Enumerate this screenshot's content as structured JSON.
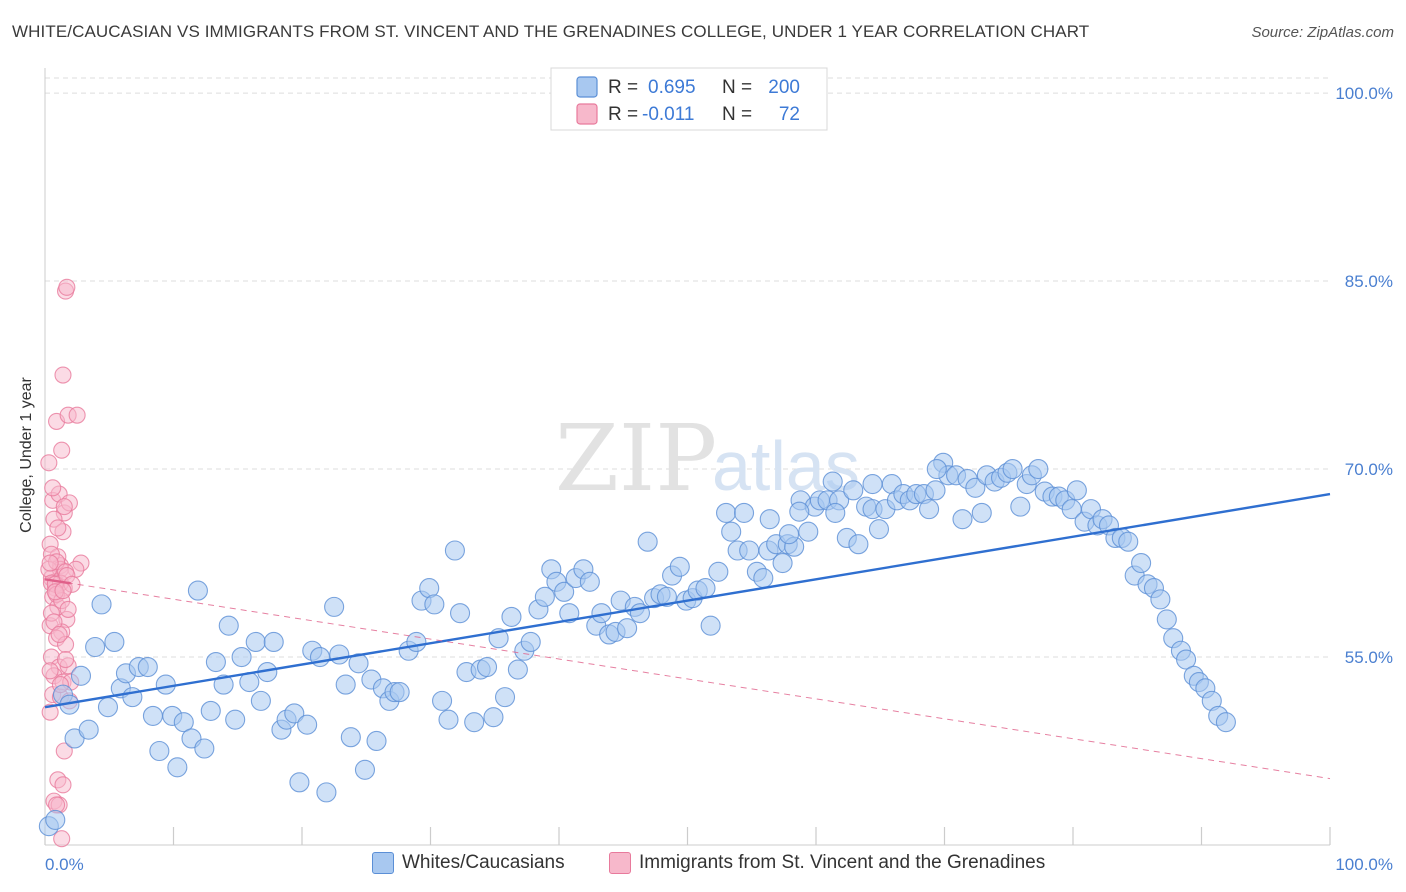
{
  "header": {
    "title": "WHITE/CAUCASIAN VS IMMIGRANTS FROM ST. VINCENT AND THE GRENADINES COLLEGE, UNDER 1 YEAR CORRELATION CHART",
    "source": "Source: ZipAtlas.com"
  },
  "watermark": {
    "zip": "ZIP",
    "atlas": "atlas"
  },
  "colors": {
    "blue_fill": "#a8c8f0",
    "blue_stroke": "#5b8fd6",
    "blue_line": "#2f6fd0",
    "pink_fill": "#f7b8cb",
    "pink_stroke": "#e87a9c",
    "pink_line": "#e0608a",
    "tick_text": "#4a7fd0",
    "grid": "#dddddd"
  },
  "stats_legend": {
    "rows": [
      {
        "r_label": "R = ",
        "r_value": "0.695",
        "n_label": "N = ",
        "n_value": "200"
      },
      {
        "r_label": "R = ",
        "r_value": "-0.011",
        "n_label": "N = ",
        "n_value": "72"
      }
    ]
  },
  "chart_data": {
    "type": "scatter",
    "title": "WHITE/CAUCASIAN VS IMMIGRANTS FROM ST. VINCENT AND THE GRENADINES COLLEGE, UNDER 1 YEAR CORRELATION CHART",
    "xlabel": "",
    "ylabel": "College, Under 1 year",
    "xlim": [
      0,
      100
    ],
    "ylim": [
      40,
      102
    ],
    "x_tick_labels": [
      "0.0%",
      "100.0%"
    ],
    "y_ticks": [
      55,
      70,
      85,
      100
    ],
    "y_tick_labels": [
      "55.0%",
      "70.0%",
      "85.0%",
      "100.0%"
    ],
    "grid": true,
    "legend_position": "bottom",
    "series": [
      {
        "name": "Whites/Caucasians",
        "r": 0.695,
        "n": 200,
        "trend": {
          "x": [
            0,
            100
          ],
          "y": [
            51.0,
            68.0
          ]
        },
        "points": [
          [
            0.3,
            41.5
          ],
          [
            0.8,
            42.0
          ],
          [
            1.4,
            52.0
          ],
          [
            1.9,
            51.2
          ],
          [
            2.3,
            48.5
          ],
          [
            2.8,
            53.5
          ],
          [
            3.4,
            49.2
          ],
          [
            3.9,
            55.8
          ],
          [
            4.4,
            59.2
          ],
          [
            4.9,
            51.0
          ],
          [
            5.4,
            56.2
          ],
          [
            5.9,
            52.5
          ],
          [
            6.3,
            53.7
          ],
          [
            6.8,
            51.8
          ],
          [
            7.3,
            54.2
          ],
          [
            8.0,
            54.2
          ],
          [
            8.4,
            50.3
          ],
          [
            8.9,
            47.5
          ],
          [
            9.4,
            52.8
          ],
          [
            9.9,
            50.3
          ],
          [
            10.3,
            46.2
          ],
          [
            10.8,
            49.8
          ],
          [
            11.4,
            48.5
          ],
          [
            11.9,
            60.3
          ],
          [
            12.4,
            47.7
          ],
          [
            12.9,
            50.7
          ],
          [
            13.3,
            54.6
          ],
          [
            13.9,
            52.8
          ],
          [
            14.3,
            57.5
          ],
          [
            14.8,
            50.0
          ],
          [
            15.3,
            55.0
          ],
          [
            15.9,
            53.0
          ],
          [
            16.4,
            56.2
          ],
          [
            16.8,
            51.5
          ],
          [
            17.3,
            53.8
          ],
          [
            17.8,
            56.2
          ],
          [
            18.4,
            49.2
          ],
          [
            18.8,
            50.0
          ],
          [
            19.4,
            50.5
          ],
          [
            19.8,
            45.0
          ],
          [
            20.4,
            49.6
          ],
          [
            20.8,
            55.5
          ],
          [
            21.4,
            55.0
          ],
          [
            21.9,
            44.2
          ],
          [
            22.5,
            59.0
          ],
          [
            22.9,
            55.2
          ],
          [
            23.4,
            52.8
          ],
          [
            23.8,
            48.6
          ],
          [
            24.4,
            54.5
          ],
          [
            24.9,
            46.0
          ],
          [
            25.4,
            53.2
          ],
          [
            25.8,
            48.3
          ],
          [
            26.3,
            52.5
          ],
          [
            26.8,
            51.5
          ],
          [
            27.2,
            52.2
          ],
          [
            27.6,
            52.2
          ],
          [
            28.3,
            55.5
          ],
          [
            28.9,
            56.2
          ],
          [
            29.3,
            59.5
          ],
          [
            29.9,
            60.5
          ],
          [
            30.3,
            59.2
          ],
          [
            30.9,
            51.5
          ],
          [
            31.4,
            50.0
          ],
          [
            31.9,
            63.5
          ],
          [
            32.3,
            58.5
          ],
          [
            32.8,
            53.8
          ],
          [
            33.4,
            49.8
          ],
          [
            33.9,
            54.0
          ],
          [
            34.4,
            54.2
          ],
          [
            34.9,
            50.2
          ],
          [
            35.3,
            56.5
          ],
          [
            35.8,
            51.8
          ],
          [
            36.3,
            58.2
          ],
          [
            36.8,
            54.0
          ],
          [
            37.3,
            55.5
          ],
          [
            37.8,
            56.2
          ],
          [
            38.4,
            58.8
          ],
          [
            38.9,
            59.8
          ],
          [
            39.4,
            62.0
          ],
          [
            39.8,
            61.0
          ],
          [
            40.4,
            60.2
          ],
          [
            40.8,
            58.5
          ],
          [
            41.3,
            61.3
          ],
          [
            41.9,
            62.0
          ],
          [
            42.4,
            61.0
          ],
          [
            42.9,
            57.5
          ],
          [
            43.3,
            58.5
          ],
          [
            43.9,
            56.8
          ],
          [
            44.4,
            57.0
          ],
          [
            44.8,
            59.5
          ],
          [
            45.3,
            57.3
          ],
          [
            45.9,
            59.0
          ],
          [
            46.3,
            58.5
          ],
          [
            46.9,
            64.2
          ],
          [
            47.4,
            59.7
          ],
          [
            47.9,
            60.0
          ],
          [
            48.4,
            59.8
          ],
          [
            48.8,
            61.5
          ],
          [
            49.4,
            62.2
          ],
          [
            49.9,
            59.5
          ],
          [
            50.4,
            59.7
          ],
          [
            50.8,
            60.3
          ],
          [
            51.4,
            60.5
          ],
          [
            51.8,
            57.5
          ],
          [
            52.4,
            61.8
          ],
          [
            53.0,
            66.5
          ],
          [
            53.4,
            65.0
          ],
          [
            53.9,
            63.5
          ],
          [
            54.4,
            66.5
          ],
          [
            54.8,
            63.5
          ],
          [
            55.4,
            61.8
          ],
          [
            55.9,
            61.3
          ],
          [
            56.3,
            63.5
          ],
          [
            56.9,
            64.0
          ],
          [
            57.4,
            62.5
          ],
          [
            57.8,
            64.0
          ],
          [
            58.3,
            63.8
          ],
          [
            58.8,
            67.5
          ],
          [
            59.4,
            65.0
          ],
          [
            59.9,
            67.0
          ],
          [
            60.3,
            67.5
          ],
          [
            60.9,
            67.5
          ],
          [
            61.3,
            69.0
          ],
          [
            61.8,
            67.5
          ],
          [
            62.4,
            64.5
          ],
          [
            62.9,
            68.3
          ],
          [
            63.3,
            64.0
          ],
          [
            63.9,
            67.0
          ],
          [
            64.4,
            66.8
          ],
          [
            64.9,
            65.2
          ],
          [
            65.4,
            66.8
          ],
          [
            65.9,
            68.8
          ],
          [
            66.3,
            67.5
          ],
          [
            66.8,
            68.0
          ],
          [
            67.3,
            67.5
          ],
          [
            67.8,
            68.0
          ],
          [
            68.4,
            68.0
          ],
          [
            68.8,
            66.8
          ],
          [
            69.3,
            68.3
          ],
          [
            69.9,
            70.5
          ],
          [
            70.3,
            69.5
          ],
          [
            70.9,
            69.5
          ],
          [
            71.4,
            66.0
          ],
          [
            71.8,
            69.2
          ],
          [
            72.4,
            68.5
          ],
          [
            72.9,
            66.5
          ],
          [
            73.3,
            69.5
          ],
          [
            73.9,
            69.0
          ],
          [
            74.4,
            69.3
          ],
          [
            74.9,
            69.7
          ],
          [
            75.3,
            70.0
          ],
          [
            75.9,
            67.0
          ],
          [
            76.4,
            68.8
          ],
          [
            76.8,
            69.5
          ],
          [
            77.3,
            70.0
          ],
          [
            77.8,
            68.2
          ],
          [
            78.4,
            67.8
          ],
          [
            78.9,
            67.8
          ],
          [
            79.4,
            67.5
          ],
          [
            79.9,
            66.8
          ],
          [
            80.3,
            68.3
          ],
          [
            80.9,
            65.8
          ],
          [
            81.4,
            66.8
          ],
          [
            81.9,
            65.5
          ],
          [
            82.3,
            66.0
          ],
          [
            82.8,
            65.5
          ],
          [
            83.3,
            64.5
          ],
          [
            83.8,
            64.5
          ],
          [
            84.3,
            64.2
          ],
          [
            84.8,
            61.5
          ],
          [
            85.3,
            62.5
          ],
          [
            85.8,
            60.8
          ],
          [
            86.3,
            60.5
          ],
          [
            86.8,
            59.6
          ],
          [
            87.3,
            58.0
          ],
          [
            87.8,
            56.5
          ],
          [
            88.4,
            55.5
          ],
          [
            88.8,
            54.8
          ],
          [
            89.4,
            53.5
          ],
          [
            89.8,
            53.0
          ],
          [
            90.3,
            52.5
          ],
          [
            90.8,
            51.5
          ],
          [
            91.3,
            50.3
          ],
          [
            91.9,
            49.8
          ],
          [
            69.4,
            70.0
          ],
          [
            64.4,
            68.8
          ],
          [
            57.9,
            64.8
          ],
          [
            56.4,
            66.0
          ],
          [
            58.7,
            66.6
          ],
          [
            61.5,
            66.5
          ]
        ]
      },
      {
        "name": "Immigrants from St. Vincent and the Grenadines",
        "r": -0.011,
        "n": 72,
        "trend": {
          "x": [
            0,
            100
          ],
          "y": [
            61.2,
            45.3
          ]
        },
        "points": [
          [
            0.5,
            61.3
          ],
          [
            0.8,
            60.5
          ],
          [
            1.2,
            62.3
          ],
          [
            0.4,
            64.0
          ],
          [
            1.0,
            63.0
          ],
          [
            1.5,
            66.5
          ],
          [
            0.6,
            67.5
          ],
          [
            1.3,
            71.5
          ],
          [
            0.9,
            73.8
          ],
          [
            1.8,
            74.3
          ],
          [
            1.4,
            77.5
          ],
          [
            1.6,
            84.2
          ],
          [
            1.7,
            84.5
          ],
          [
            2.5,
            74.3
          ],
          [
            0.3,
            70.5
          ],
          [
            1.1,
            68.0
          ],
          [
            1.9,
            67.3
          ],
          [
            0.7,
            66.0
          ],
          [
            1.4,
            65.0
          ],
          [
            0.5,
            63.2
          ],
          [
            1.2,
            62.0
          ],
          [
            0.8,
            61.0
          ],
          [
            1.5,
            60.5
          ],
          [
            0.6,
            59.8
          ],
          [
            1.0,
            59.0
          ],
          [
            1.7,
            58.0
          ],
          [
            0.4,
            57.5
          ],
          [
            1.3,
            57.0
          ],
          [
            0.9,
            56.5
          ],
          [
            1.6,
            56.0
          ],
          [
            0.5,
            55.0
          ],
          [
            1.1,
            54.2
          ],
          [
            1.8,
            54.3
          ],
          [
            0.7,
            53.5
          ],
          [
            1.4,
            53.0
          ],
          [
            2.0,
            53.0
          ],
          [
            0.6,
            52.0
          ],
          [
            1.2,
            51.8
          ],
          [
            1.9,
            51.5
          ],
          [
            0.4,
            50.6
          ],
          [
            1.5,
            47.5
          ],
          [
            2.8,
            62.5
          ],
          [
            2.4,
            62.0
          ],
          [
            0.3,
            62.0
          ],
          [
            0.9,
            62.6
          ],
          [
            1.6,
            61.8
          ],
          [
            0.5,
            60.9
          ],
          [
            1.2,
            60.9
          ],
          [
            0.8,
            60.8
          ],
          [
            1.0,
            45.2
          ],
          [
            1.4,
            44.8
          ],
          [
            0.7,
            43.5
          ],
          [
            1.1,
            43.2
          ],
          [
            0.9,
            43.2
          ],
          [
            1.3,
            40.5
          ],
          [
            0.6,
            68.5
          ],
          [
            1.5,
            67.0
          ],
          [
            1.0,
            65.3
          ],
          [
            0.4,
            62.5
          ],
          [
            1.7,
            61.5
          ],
          [
            2.1,
            60.8
          ],
          [
            0.9,
            60.0
          ],
          [
            1.3,
            59.5
          ],
          [
            0.5,
            58.5
          ],
          [
            1.8,
            58.8
          ],
          [
            0.7,
            57.8
          ],
          [
            1.1,
            56.8
          ],
          [
            1.6,
            54.8
          ],
          [
            0.4,
            53.9
          ],
          [
            1.2,
            52.8
          ],
          [
            0.8,
            60.2
          ],
          [
            1.4,
            60.3
          ]
        ]
      }
    ]
  },
  "bottom_legend": {
    "items": [
      {
        "label": "Whites/Caucasians"
      },
      {
        "label": "Immigrants from St. Vincent and the Grenadines"
      }
    ]
  }
}
